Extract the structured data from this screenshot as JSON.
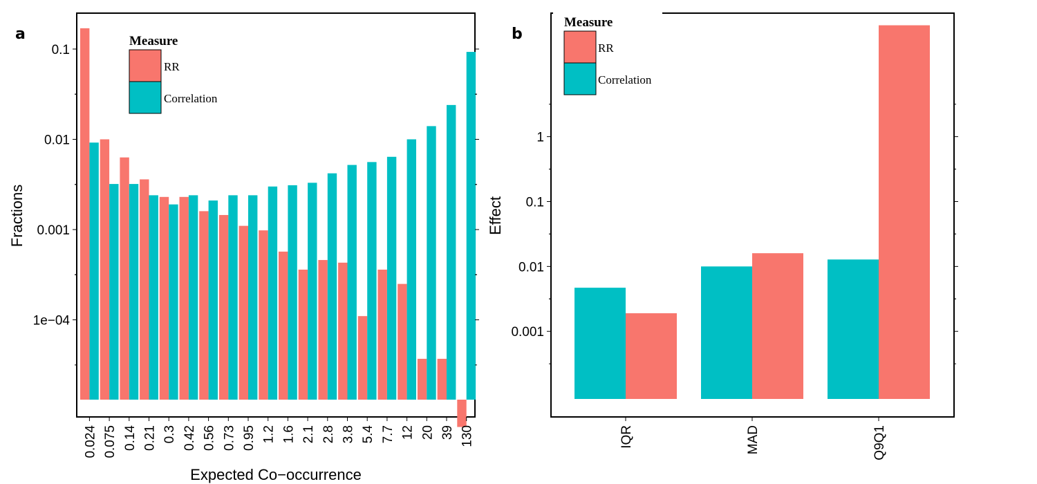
{
  "colors": {
    "rr": "#F8766D",
    "correlation": "#00BFC4"
  },
  "chart_data": [
    {
      "panel": "a",
      "type": "bar",
      "xlabel": "Expected Co−occurrence",
      "ylabel": "Fractions",
      "yscale": "log",
      "ylim": [
        8.4e-06,
        0.25
      ],
      "yticks": [
        {
          "value": 0.1,
          "label": "0.1"
        },
        {
          "value": 0.01,
          "label": "0.01"
        },
        {
          "value": 0.001,
          "label": "0.001"
        },
        {
          "value": 0.0001,
          "label": "1e−04"
        }
      ],
      "categories": [
        "0.024",
        "0.075",
        "0.14",
        "0.21",
        "0.3",
        "0.42",
        "0.56",
        "0.73",
        "0.95",
        "1.2",
        "1.6",
        "2.1",
        "2.8",
        "3.8",
        "5.4",
        "7.7",
        "12",
        "20",
        "39",
        "130"
      ],
      "series": [
        {
          "name": "RR",
          "values": [
            0.17,
            0.01,
            0.0063,
            0.0036,
            0.0023,
            0.0023,
            0.0016,
            0.00145,
            0.0011,
            0.00098,
            0.00057,
            0.00036,
            0.00046,
            0.00043,
            0.00011,
            0.00036,
            0.00025,
            3.7e-05,
            3.7e-05,
            6.5e-06
          ]
        },
        {
          "name": "Correlation",
          "values": [
            0.0092,
            0.0032,
            0.0032,
            0.0024,
            0.0019,
            0.0024,
            0.0021,
            0.0024,
            0.0024,
            0.003,
            0.0031,
            0.0033,
            0.0042,
            0.0052,
            0.0056,
            0.0064,
            0.01,
            0.014,
            0.024,
            0.093
          ]
        }
      ],
      "legend": {
        "title": "Measure",
        "entries": [
          "RR",
          "Correlation"
        ],
        "placement": "top-left"
      }
    },
    {
      "panel": "b",
      "type": "bar",
      "xlabel": "",
      "ylabel": "Effect",
      "yscale": "log",
      "ylim": [
        4.8e-05,
        80
      ],
      "yticks": [
        {
          "value": 1,
          "label": "1"
        },
        {
          "value": 0.1,
          "label": "0.1"
        },
        {
          "value": 0.01,
          "label": "0.01"
        },
        {
          "value": 0.001,
          "label": "0.001"
        }
      ],
      "categories": [
        "IQR",
        "MAD",
        "Q9Q1"
      ],
      "series": [
        {
          "name": "Correlation",
          "values": [
            0.0047,
            0.01,
            0.0128
          ]
        },
        {
          "name": "RR",
          "values": [
            0.0019,
            0.016,
            52
          ]
        }
      ],
      "legend": {
        "title": "Measure",
        "entries": [
          "RR",
          "Correlation"
        ],
        "placement": "top-left"
      }
    }
  ]
}
